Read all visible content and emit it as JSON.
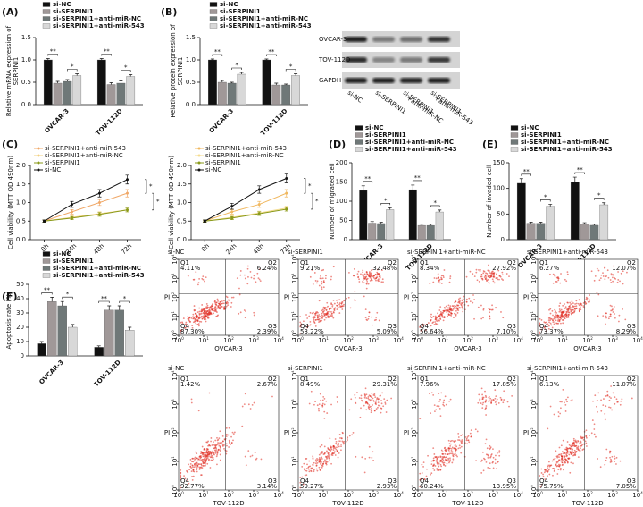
{
  "chart_data": [
    {
      "type": "bar",
      "panel": "(A)",
      "ylabel": [
        "Relative mRNA expression of",
        "SERPINI1"
      ],
      "categories": [
        "OVCAR-3",
        "TOV-112D"
      ],
      "ylim": [
        0,
        1.5
      ],
      "yticks": [
        {
          "value": 0,
          "label": "0.0"
        },
        {
          "value": 0.5,
          "label": "0.5"
        },
        {
          "value": 1,
          "label": "1.0"
        },
        {
          "value": 1.5,
          "label": "1.5"
        }
      ],
      "series": [
        {
          "name": "si-NC",
          "color": "#111111",
          "values": [
            1.0,
            1.0
          ],
          "errors": [
            0.03,
            0.03
          ]
        },
        {
          "name": "si-SERPINI1",
          "color": "#a09898",
          "values": [
            0.48,
            0.45
          ],
          "errors": [
            0.04,
            0.04
          ]
        },
        {
          "name": "si-SERPINI1+anti-miR-NC",
          "color": "#6f7878",
          "values": [
            0.52,
            0.48
          ],
          "errors": [
            0.04,
            0.05
          ]
        },
        {
          "name": "si-SERPINI1+anti-miR-543",
          "color": "#d8d8d8",
          "values": [
            0.65,
            0.63
          ],
          "errors": [
            0.04,
            0.04
          ]
        }
      ],
      "significance": [
        [
          "**",
          "*"
        ],
        [
          "**",
          "*"
        ]
      ]
    },
    {
      "type": "bar",
      "panel": "(B)",
      "ylabel": [
        "Relative protein expression of",
        "SERPINI1"
      ],
      "categories": [
        "OVCAR-3",
        "TOV-112D"
      ],
      "ylim": [
        0,
        1.5
      ],
      "yticks": [
        {
          "value": 0,
          "label": "0.0"
        },
        {
          "value": 0.5,
          "label": "0.5"
        },
        {
          "value": 1,
          "label": "1.0"
        },
        {
          "value": 1.5,
          "label": "1.5"
        }
      ],
      "series": [
        {
          "name": "si-NC",
          "color": "#111111",
          "values": [
            1.0,
            1.0
          ],
          "errors": [
            0.02,
            0.02
          ]
        },
        {
          "name": "si-SERPINI1",
          "color": "#a09898",
          "values": [
            0.5,
            0.44
          ],
          "errors": [
            0.04,
            0.04
          ]
        },
        {
          "name": "si-SERPINI1+anti-miR-NC",
          "color": "#6f7878",
          "values": [
            0.48,
            0.44
          ],
          "errors": [
            0.02,
            0.02
          ]
        },
        {
          "name": "si-SERPINI1+anti-miR-543",
          "color": "#d8d8d8",
          "values": [
            0.68,
            0.65
          ],
          "errors": [
            0.04,
            0.04
          ]
        }
      ],
      "significance": [
        [
          "**",
          "*"
        ],
        [
          "**",
          "*"
        ]
      ]
    },
    {
      "type": "line",
      "panel": "(C)",
      "ylabel": [
        "Cell viability (MTT OD 490nm)"
      ],
      "categories": [
        "0h",
        "24h",
        "48h",
        "72h"
      ],
      "ylim": [
        0,
        2
      ],
      "yticks": [
        {
          "value": 0,
          "label": "0.0"
        },
        {
          "value": 0.5,
          "label": "0.5"
        },
        {
          "value": 1,
          "label": "1.0"
        },
        {
          "value": 1.5,
          "label": "1.5"
        },
        {
          "value": 2,
          "label": "2.0"
        }
      ],
      "series": [
        {
          "name": "si-SERPINI1+anti-miR-543",
          "color": "#f0a868",
          "values": [
            0.5,
            0.75,
            1.0,
            1.25
          ],
          "errors": [
            0.03,
            0.06,
            0.08,
            0.1
          ]
        },
        {
          "name": "si-SERPINI1+anti-miR-NC",
          "color": "#f2d080",
          "values": [
            0.5,
            0.6,
            0.7,
            0.8
          ],
          "errors": [
            0.03,
            0.04,
            0.05,
            0.05
          ]
        },
        {
          "name": "si-SERPINI1",
          "color": "#8a9a1a",
          "values": [
            0.5,
            0.58,
            0.68,
            0.8
          ],
          "errors": [
            0.03,
            0.04,
            0.05,
            0.05
          ]
        },
        {
          "name": "si-NC",
          "color": "#111111",
          "values": [
            0.5,
            0.95,
            1.25,
            1.62
          ],
          "errors": [
            0.03,
            0.08,
            0.1,
            0.12
          ]
        }
      ],
      "significance": [
        "*",
        "*"
      ]
    },
    {
      "type": "line",
      "ylabel": [
        "Cell viability (MTT OD 490nm)"
      ],
      "categories": [
        "0h",
        "24h",
        "48h",
        "72h"
      ],
      "ylim": [
        0,
        2
      ],
      "yticks": [
        {
          "value": 0,
          "label": "0.0"
        },
        {
          "value": 0.5,
          "label": "0.5"
        },
        {
          "value": 1,
          "label": "1.0"
        },
        {
          "value": 1.5,
          "label": "1.5"
        },
        {
          "value": 2,
          "label": "2.0"
        }
      ],
      "series": [
        {
          "name": "si-SERPINI1+anti-miR-543",
          "color": "#f0b860",
          "values": [
            0.5,
            0.75,
            0.95,
            1.25
          ],
          "errors": [
            0.03,
            0.06,
            0.08,
            0.1
          ]
        },
        {
          "name": "si-SERPINI1+anti-miR-NC",
          "color": "#f5dc90",
          "values": [
            0.5,
            0.6,
            0.72,
            0.85
          ],
          "errors": [
            0.03,
            0.04,
            0.05,
            0.05
          ]
        },
        {
          "name": "si-SERPINI1",
          "color": "#8a9a1a",
          "values": [
            0.5,
            0.58,
            0.7,
            0.82
          ],
          "errors": [
            0.03,
            0.04,
            0.05,
            0.05
          ]
        },
        {
          "name": "si-NC",
          "color": "#111111",
          "values": [
            0.5,
            0.9,
            1.35,
            1.65
          ],
          "errors": [
            0.03,
            0.08,
            0.1,
            0.12
          ]
        }
      ],
      "significance": [
        "*",
        "*"
      ]
    },
    {
      "type": "bar",
      "panel": "(D)",
      "ylabel": [
        "Number of migrated cell"
      ],
      "categories": [
        "OVCAR-3",
        "TOV-112D"
      ],
      "ylim": [
        0,
        200
      ],
      "yticks": [
        0,
        50,
        100,
        150,
        200
      ],
      "series": [
        {
          "name": "si-NC",
          "color": "#111111",
          "values": [
            128,
            130
          ],
          "errors": [
            12,
            12
          ]
        },
        {
          "name": "si-SERPINI1",
          "color": "#a09898",
          "values": [
            43,
            37
          ],
          "errors": [
            4,
            3
          ]
        },
        {
          "name": "si-SERPINI1+anti-miR-NC",
          "color": "#6f7878",
          "values": [
            42,
            37
          ],
          "errors": [
            3,
            3
          ]
        },
        {
          "name": "si-SERPINI1+anti-miR-543",
          "color": "#d8d8d8",
          "values": [
            78,
            72
          ],
          "errors": [
            5,
            5
          ]
        }
      ],
      "significance": [
        [
          "**",
          "*"
        ],
        [
          "**",
          "*"
        ]
      ]
    },
    {
      "type": "bar",
      "panel": "(E)",
      "ylabel": [
        "Number of  invaded cell"
      ],
      "categories": [
        "OVCAR-3",
        "TOV-112D"
      ],
      "ylim": [
        0,
        150
      ],
      "yticks": [
        0,
        50,
        100,
        150
      ],
      "series": [
        {
          "name": "si-NC",
          "color": "#111111",
          "values": [
            110,
            113
          ],
          "errors": [
            9,
            9
          ]
        },
        {
          "name": "si-SERPINI1",
          "color": "#a09898",
          "values": [
            32,
            31
          ],
          "errors": [
            2,
            2
          ]
        },
        {
          "name": "si-SERPINI1+anti-miR-NC",
          "color": "#6f7878",
          "values": [
            32,
            28
          ],
          "errors": [
            2,
            2
          ]
        },
        {
          "name": "si-SERPINI1+anti-miR-543",
          "color": "#d8d8d8",
          "values": [
            65,
            68
          ],
          "errors": [
            4,
            4
          ]
        }
      ],
      "significance": [
        [
          "**",
          "*"
        ],
        [
          "**",
          "*"
        ]
      ]
    },
    {
      "type": "bar",
      "panel": "(F)",
      "ylabel": [
        "Apoptosis rate (%)"
      ],
      "categories": [
        "OVCAR-3",
        "TOV-112D"
      ],
      "ylim": [
        0,
        50
      ],
      "yticks": [
        0,
        10,
        20,
        30,
        40,
        50
      ],
      "series": [
        {
          "name": "si-NC",
          "color": "#111111",
          "values": [
            8.5,
            6
          ],
          "errors": [
            1.5,
            1
          ]
        },
        {
          "name": "si-SERPINI1",
          "color": "#a09898",
          "values": [
            38,
            32
          ],
          "errors": [
            3,
            3
          ]
        },
        {
          "name": "si-SERPINI1+anti-miR-NC",
          "color": "#6f7878",
          "values": [
            35,
            32
          ],
          "errors": [
            3,
            3
          ]
        },
        {
          "name": "si-SERPINI1+anti-miR-543",
          "color": "#d8d8d8",
          "values": [
            20,
            18
          ],
          "errors": [
            2,
            2
          ]
        }
      ],
      "significance": [
        [
          "**",
          "*"
        ],
        [
          "**",
          "*"
        ]
      ]
    }
  ],
  "blot": {
    "rows": [
      "OVCAR-3",
      "TOV-112D",
      "GAPDH"
    ],
    "lanes": [
      [
        "si-NC"
      ],
      [
        "si-SERPINI1"
      ],
      [
        "si-SERPINI1",
        "+anti-miR-NC"
      ],
      [
        "si-SERPINI1",
        "+anti-miR-543"
      ]
    ]
  },
  "flow": {
    "base": "10",
    "exponents": [
      0,
      1,
      2,
      3,
      4
    ],
    "ylabel": "PI",
    "quadrants": [
      "Q1",
      "Q2",
      "Q3",
      "Q4"
    ],
    "plots": [
      {
        "title": "si-NC",
        "xlabel": "OVCAR-3",
        "percent": [
          "4.11%",
          "6.24%",
          "2.39%",
          "87.30%"
        ]
      },
      {
        "title": "si-SERPINI1",
        "xlabel": "OVCAR-3",
        "percent": [
          "9.21%",
          "32.48%",
          "5.09%",
          "53.22%"
        ]
      },
      {
        "title": "si-SERPINI1+anti-miR-NC",
        "xlabel": "OVCAR-3",
        "percent": [
          "8.34%",
          "27.92%",
          "7.10%",
          "56.64%"
        ]
      },
      {
        "title": "si-SERPINI1+anti-miR-543",
        "xlabel": "OVCAR-3",
        "percent": [
          "6.27%",
          "12.07%",
          "8.29%",
          "73.37%"
        ]
      },
      {
        "title": "si-NC",
        "xlabel": "TOV-112D",
        "percent": [
          "1.42%",
          "2.67%",
          "3.14%",
          "92.77%"
        ]
      },
      {
        "title": "si-SERPINI1",
        "xlabel": "TOV-112D",
        "percent": [
          "8.49%",
          "29.31%",
          "2.93%",
          "59.27%"
        ]
      },
      {
        "title": "si-SERPINI1+anti-miR-NC",
        "xlabel": "TOV-112D",
        "percent": [
          "7.96%",
          "17.85%",
          "13.95%",
          "60.24%"
        ]
      },
      {
        "title": "si-SERPINI1+anti-miR-543",
        "xlabel": "TOV-112D",
        "percent": [
          "6.13%",
          "11.07%",
          "7.05%",
          "75.75%"
        ]
      }
    ]
  }
}
